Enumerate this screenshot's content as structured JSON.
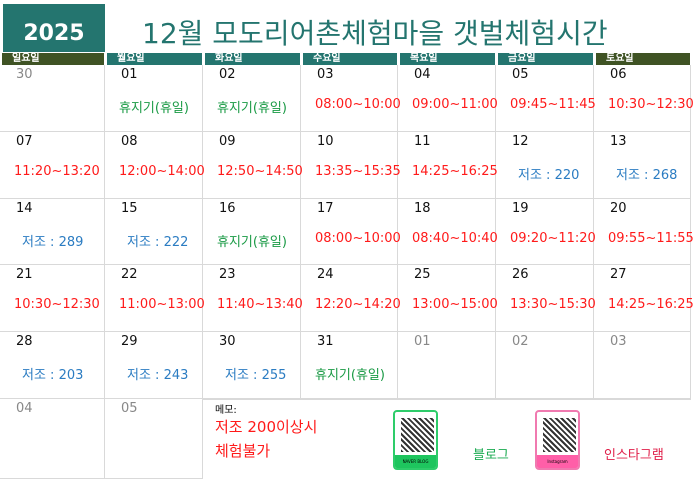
{
  "header": {
    "year": "2025",
    "title": "12월 모도리어촌체험마을 갯벌체험시간"
  },
  "colors": {
    "teal": "#24756f",
    "olive": "#3f5324",
    "time": "#ff1a1a",
    "closed": "#1a9a45",
    "low_tide": "#2b7cc2"
  },
  "weekdays": [
    "일요일",
    "월요일",
    "화요일",
    "수요일",
    "목요일",
    "금요일",
    "토요일"
  ],
  "weeks": [
    [
      {
        "day": "30",
        "dim": true,
        "text": "",
        "kind": ""
      },
      {
        "day": "01",
        "text": "휴지기(휴일)",
        "kind": "green"
      },
      {
        "day": "02",
        "text": "휴지기(휴일)",
        "kind": "green"
      },
      {
        "day": "03",
        "text": "08:00~10:00",
        "kind": "red"
      },
      {
        "day": "04",
        "text": "09:00~11:00",
        "kind": "red"
      },
      {
        "day": "05",
        "text": "09:45~11:45",
        "kind": "red"
      },
      {
        "day": "06",
        "text": "10:30~12:30",
        "kind": "red"
      }
    ],
    [
      {
        "day": "07",
        "text": "11:20~13:20",
        "kind": "red"
      },
      {
        "day": "08",
        "text": "12:00~14:00",
        "kind": "red"
      },
      {
        "day": "09",
        "text": "12:50~14:50",
        "kind": "red"
      },
      {
        "day": "10",
        "text": "13:35~15:35",
        "kind": "red"
      },
      {
        "day": "11",
        "text": "14:25~16:25",
        "kind": "red"
      },
      {
        "day": "12",
        "text": "저조 : 220",
        "kind": "blue"
      },
      {
        "day": "13",
        "text": "저조 : 268",
        "kind": "blue"
      }
    ],
    [
      {
        "day": "14",
        "text": "저조 : 289",
        "kind": "blue"
      },
      {
        "day": "15",
        "text": "저조 : 222",
        "kind": "blue"
      },
      {
        "day": "16",
        "text": "휴지기(휴일)",
        "kind": "green"
      },
      {
        "day": "17",
        "text": "08:00~10:00",
        "kind": "red"
      },
      {
        "day": "18",
        "text": "08:40~10:40",
        "kind": "red"
      },
      {
        "day": "19",
        "text": "09:20~11:20",
        "kind": "red"
      },
      {
        "day": "20",
        "text": "09:55~11:55",
        "kind": "red"
      }
    ],
    [
      {
        "day": "21",
        "text": "10:30~12:30",
        "kind": "red"
      },
      {
        "day": "22",
        "text": "11:00~13:00",
        "kind": "red"
      },
      {
        "day": "23",
        "text": "11:40~13:40",
        "kind": "red"
      },
      {
        "day": "24",
        "text": "12:20~14:20",
        "kind": "red"
      },
      {
        "day": "25",
        "text": "13:00~15:00",
        "kind": "red"
      },
      {
        "day": "26",
        "text": "13:30~15:30",
        "kind": "red"
      },
      {
        "day": "27",
        "text": "14:25~16:25",
        "kind": "red"
      }
    ],
    [
      {
        "day": "28",
        "text": "저조 : 203",
        "kind": "blue"
      },
      {
        "day": "29",
        "text": "저조 : 243",
        "kind": "blue"
      },
      {
        "day": "30",
        "text": "저조 : 255",
        "kind": "blue"
      },
      {
        "day": "31",
        "text": "휴지기(휴일)",
        "kind": "green"
      },
      {
        "day": "01",
        "dim": true,
        "text": "",
        "kind": ""
      },
      {
        "day": "02",
        "dim": true,
        "text": "",
        "kind": ""
      },
      {
        "day": "03",
        "dim": true,
        "text": "",
        "kind": ""
      }
    ],
    [
      {
        "day": "04",
        "dim": true,
        "text": "",
        "kind": ""
      },
      {
        "day": "05",
        "dim": true,
        "text": "",
        "kind": ""
      }
    ]
  ],
  "memo": {
    "label": "메모:",
    "line1": "저조 200이상시",
    "line2": "체험불가"
  },
  "links": {
    "blog_qr_caption": "NAVER BLOG",
    "blog_label": "블로그",
    "insta_qr_caption": "Instagram",
    "insta_label": "인스타그램"
  }
}
